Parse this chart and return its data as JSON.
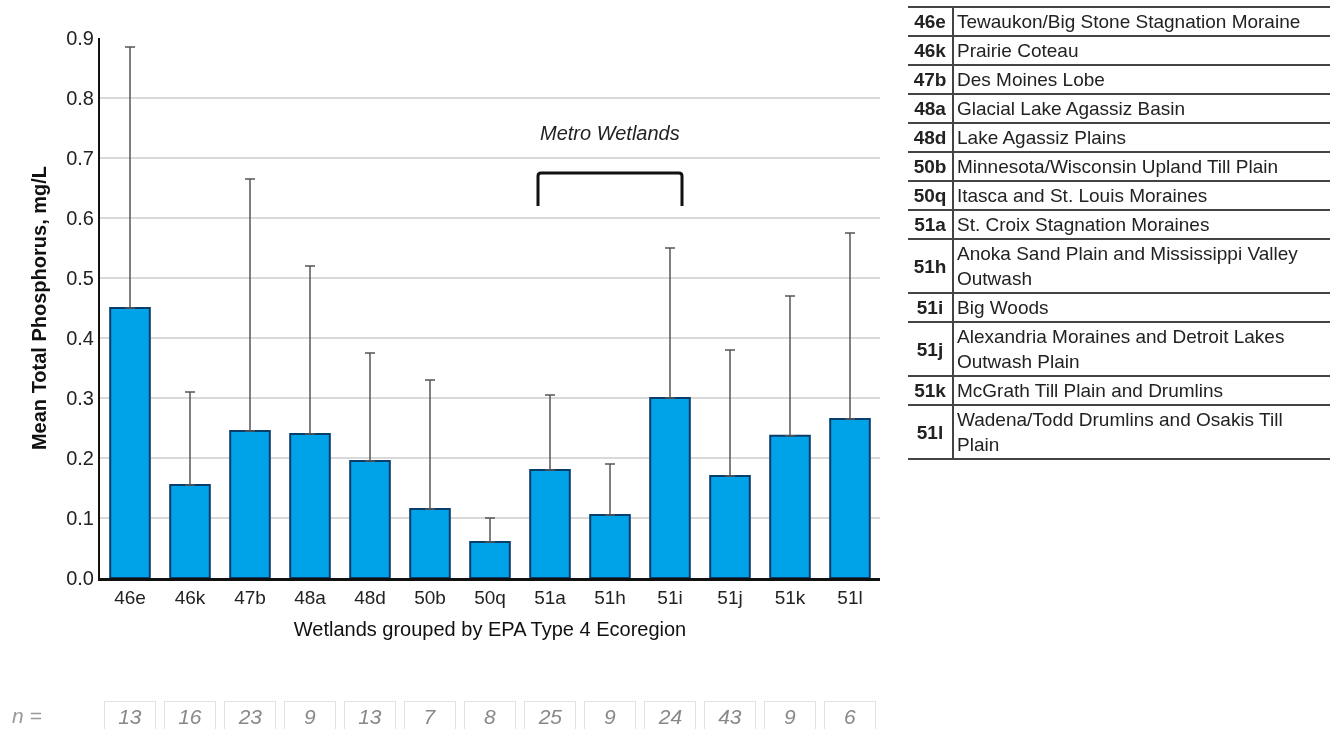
{
  "chart_data": [
    {
      "type": "bar",
      "ylabel": "Mean Total Phosphorus, mg/L",
      "xlabel": "Wetlands grouped by EPA Type 4 Ecoregion",
      "categories": [
        "46e",
        "46k",
        "47b",
        "48a",
        "48d",
        "50b",
        "50q",
        "51a",
        "51h",
        "51i",
        "51j",
        "51k",
        "51l"
      ],
      "values": [
        0.45,
        0.155,
        0.245,
        0.24,
        0.195,
        0.115,
        0.06,
        0.18,
        0.105,
        0.3,
        0.17,
        0.237,
        0.265
      ],
      "errors": [
        [
          0.45,
          0.885
        ],
        [
          0.155,
          0.31
        ],
        [
          0.245,
          0.665
        ],
        [
          0.24,
          0.52
        ],
        [
          0.195,
          0.375
        ],
        [
          0.115,
          0.33
        ],
        [
          0.06,
          0.1
        ],
        [
          0.18,
          0.305
        ],
        [
          0.105,
          0.19
        ],
        [
          0.3,
          0.55
        ],
        [
          0.17,
          0.38
        ],
        [
          0.237,
          0.47
        ],
        [
          0.265,
          0.575
        ]
      ],
      "color": "#00a2e8",
      "ylim": [
        0,
        0.9
      ],
      "yticks": [
        "0.0",
        0.1,
        0.2,
        0.3,
        0.4,
        0.5,
        0.6,
        0.7,
        0.8,
        0.9
      ],
      "grid": "y",
      "annotations": [
        "Metro Wetlands",
        "n =",
        "13",
        "16",
        "23",
        "9",
        "13",
        "7",
        "8",
        "25",
        "9",
        "24",
        "43",
        "9",
        "6"
      ]
    },
    {
      "type": "other",
      "annotations": [
        "46e",
        "Tewaukon/Big Stone Stagnation Moraine",
        "46k",
        "Prairie Coteau",
        "47b",
        "Des Moines Lobe",
        "48a",
        "Glacial Lake Agassiz Basin",
        "48d",
        "Lake Agassiz Plains",
        "50b",
        "Minnesota/Wisconsin Upland Till Plain",
        "50q",
        "Itasca and St. Louis Moraines",
        "51a",
        "St. Croix Stagnation Moraines",
        "51h",
        "Anoka Sand Plain and Mississippi Valley Outwash",
        "51i",
        "Big Woods",
        "51j",
        "Alexandria Moraines and Detroit Lakes Outwash Plain",
        "51k",
        "McGrath Till Plain and Drumlins",
        "51l",
        "Wadena/Todd Drumlins and Osakis Till Plain"
      ]
    }
  ]
}
